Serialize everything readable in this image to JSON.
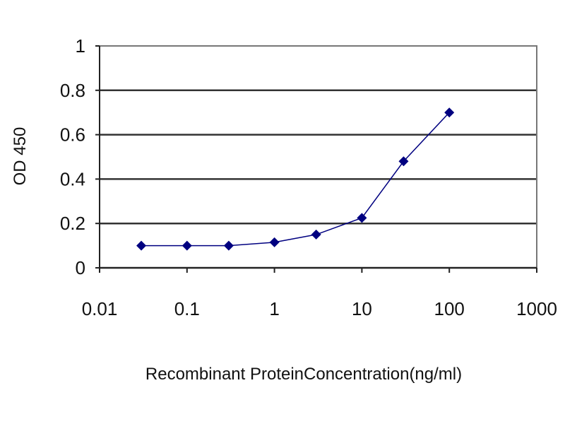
{
  "chart_data": {
    "type": "line",
    "title": "",
    "xlabel": "Recombinant ProteinConcentration(ng/ml)",
    "ylabel": "OD 450",
    "xscale": "log",
    "xlim": [
      0.01,
      1000
    ],
    "ylim": [
      0,
      1
    ],
    "x_ticks": [
      "0.01",
      "0.1",
      "1",
      "10",
      "100",
      "1000"
    ],
    "y_ticks": [
      "0",
      "0.2",
      "0.4",
      "0.6",
      "0.8",
      "1"
    ],
    "grid": "horizontal",
    "series": [
      {
        "x": [
          0.03,
          0.1,
          0.3,
          1,
          3,
          10,
          30,
          100
        ],
        "y": [
          0.1,
          0.1,
          0.1,
          0.115,
          0.15,
          0.225,
          0.48,
          0.7
        ],
        "color": "#000080",
        "marker": "diamond"
      }
    ]
  }
}
